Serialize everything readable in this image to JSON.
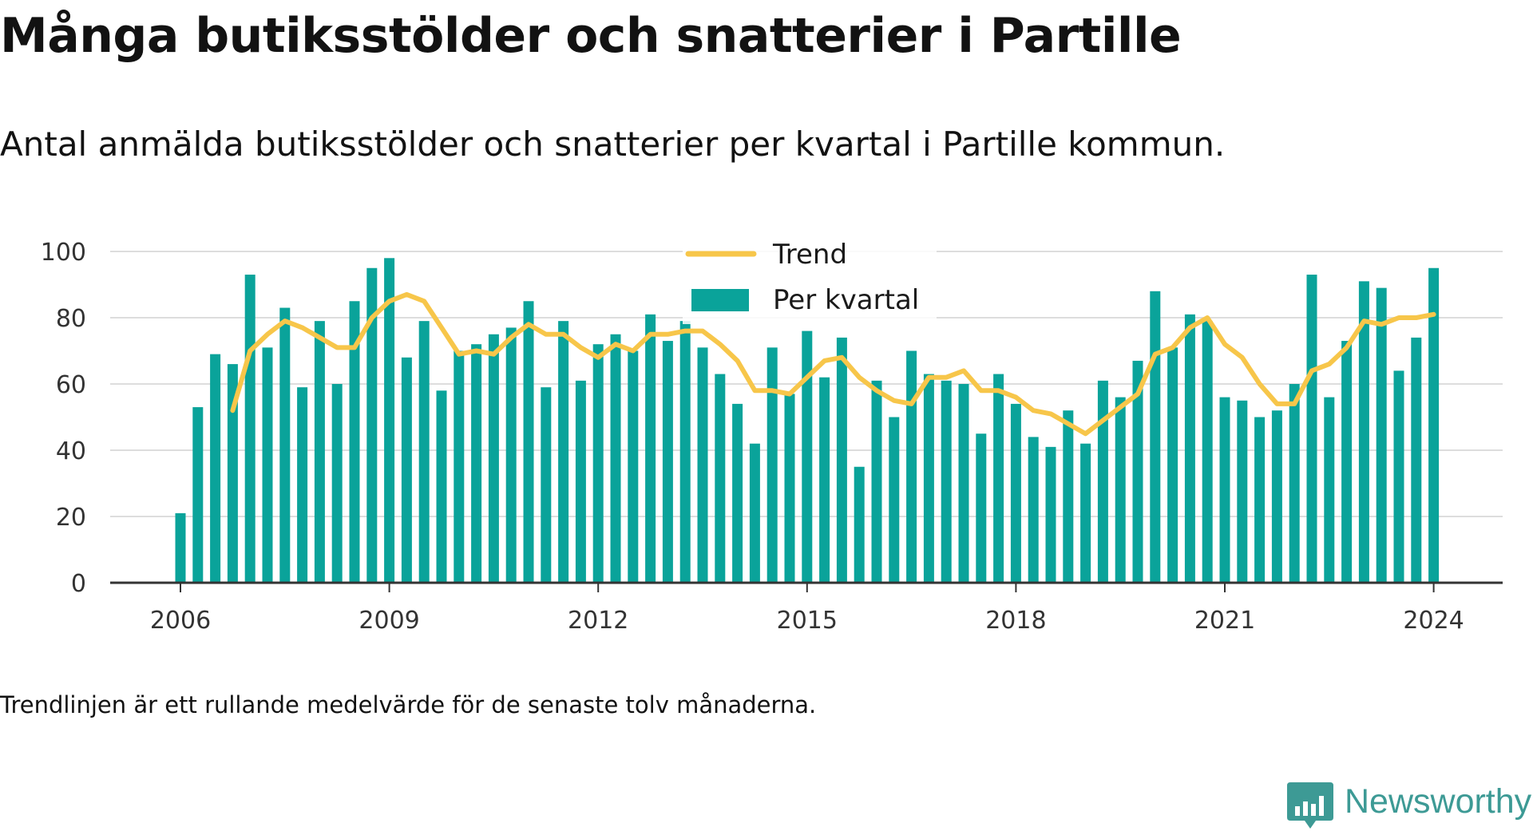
{
  "title": "Många butiksstölder och snatterier i Partille",
  "subtitle": "Antal anmälda butiksstölder och snatterier per kvartal i Partille kommun.",
  "note": "Trendlinjen är ett rullande medelvärde för de senaste tolv månaderna.",
  "brand": "Newsworthy",
  "colors": {
    "bars": "#0aa39a",
    "trend": "#f7c64a",
    "grid": "#dddddd",
    "axis": "#333333",
    "brand": "#3d9a95"
  },
  "chart_data": {
    "type": "bar",
    "x_start": "2006 Q1",
    "x_ticks": [
      "2006",
      "2009",
      "2012",
      "2015",
      "2018",
      "2021",
      "2024"
    ],
    "y_ticks": [
      0,
      20,
      40,
      60,
      80,
      100
    ],
    "ylim": [
      0,
      100
    ],
    "grid": true,
    "legend_position": "top-center",
    "series": [
      {
        "name": "Per kvartal",
        "type": "bar",
        "values": [
          21,
          53,
          69,
          66,
          93,
          71,
          83,
          59,
          79,
          60,
          85,
          95,
          98,
          68,
          79,
          58,
          70,
          72,
          75,
          77,
          85,
          59,
          79,
          61,
          72,
          75,
          70,
          81,
          73,
          79,
          71,
          63,
          54,
          42,
          71,
          57,
          76,
          62,
          74,
          35,
          61,
          50,
          70,
          63,
          61,
          60,
          45,
          63,
          54,
          44,
          41,
          52,
          42,
          61,
          56,
          67,
          88,
          71,
          81,
          79,
          56,
          55,
          50,
          52,
          60,
          93,
          56,
          73,
          91,
          89,
          64,
          74,
          95
        ]
      },
      {
        "name": "Trend",
        "type": "line",
        "values": [
          null,
          null,
          null,
          52,
          70,
          75,
          79,
          77,
          74,
          71,
          71,
          80,
          85,
          87,
          85,
          77,
          69,
          70,
          69,
          74,
          78,
          75,
          75,
          71,
          68,
          72,
          70,
          75,
          75,
          76,
          76,
          72,
          67,
          58,
          58,
          57,
          62,
          67,
          68,
          62,
          58,
          55,
          54,
          62,
          62,
          64,
          58,
          58,
          56,
          52,
          51,
          48,
          45,
          49,
          53,
          57,
          69,
          71,
          77,
          80,
          72,
          68,
          60,
          54,
          54,
          64,
          66,
          71,
          79,
          78,
          80,
          80,
          81
        ]
      }
    ]
  }
}
